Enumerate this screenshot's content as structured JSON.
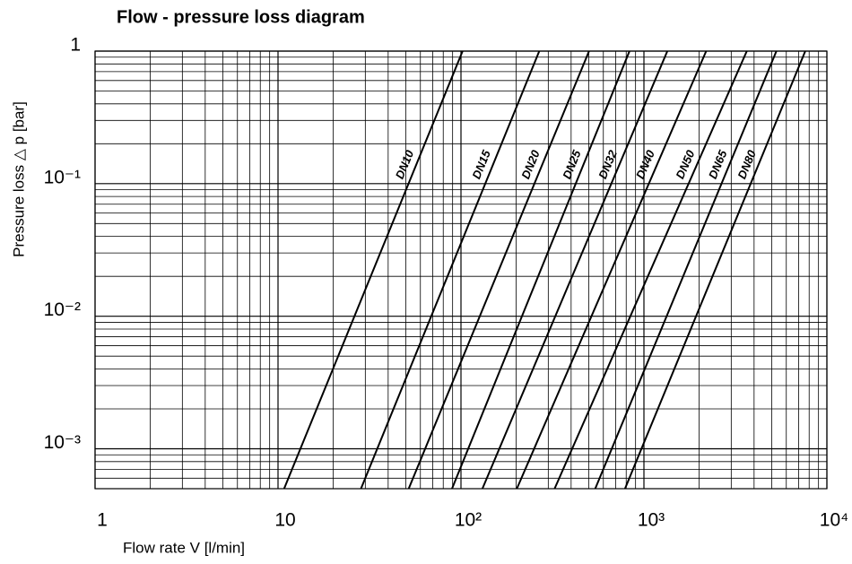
{
  "chart_data": {
    "type": "line",
    "title": "Flow - pressure loss diagram",
    "xlabel": "Flow rate V [l/min]",
    "ylabel": "Pressure loss △ p [bar]",
    "log_x": true,
    "log_y": true,
    "grid": true,
    "minor_grid": true,
    "xlim": [
      1,
      10000
    ],
    "xticks": [
      1,
      10,
      {
        "value": 100,
        "label": "10²"
      },
      {
        "value": 1000,
        "label": "10³"
      },
      {
        "value": 10000,
        "label": "10⁴"
      }
    ],
    "ylim": [
      0.0005,
      1
    ],
    "yticks": [
      1,
      {
        "value": 0.1,
        "label": "10⁻¹"
      },
      {
        "value": 0.01,
        "label": "10⁻²"
      },
      {
        "value": 0.001,
        "label": "10⁻³"
      }
    ],
    "series": [
      {
        "name": "DN10",
        "color": "#000000",
        "x": [
          10.8,
          102
        ],
        "values": [
          0.0005,
          1
        ]
      },
      {
        "name": "DN15",
        "color": "#000000",
        "x": [
          28.4,
          268
        ],
        "values": [
          0.0005,
          1
        ]
      },
      {
        "name": "DN20",
        "color": "#000000",
        "x": [
          51.8,
          501
        ],
        "values": [
          0.0005,
          1
        ]
      },
      {
        "name": "DN25",
        "color": "#000000",
        "x": [
          89.3,
          834
        ],
        "values": [
          0.0005,
          1
        ]
      },
      {
        "name": "DN32",
        "color": "#000000",
        "x": [
          131,
          1343
        ],
        "values": [
          0.0005,
          1
        ]
      },
      {
        "name": "DN40",
        "color": "#000000",
        "x": [
          202,
          2188
        ],
        "values": [
          0.0005,
          1
        ]
      },
      {
        "name": "DN50",
        "color": "#000000",
        "x": [
          325,
          3648
        ],
        "values": [
          0.0005,
          1
        ]
      },
      {
        "name": "DN65",
        "color": "#000000",
        "x": [
          542,
          5297
        ],
        "values": [
          0.0005,
          1
        ]
      },
      {
        "name": "DN80",
        "color": "#000000",
        "x": [
          788,
          7621
        ],
        "values": [
          0.0005,
          1
        ]
      }
    ]
  }
}
